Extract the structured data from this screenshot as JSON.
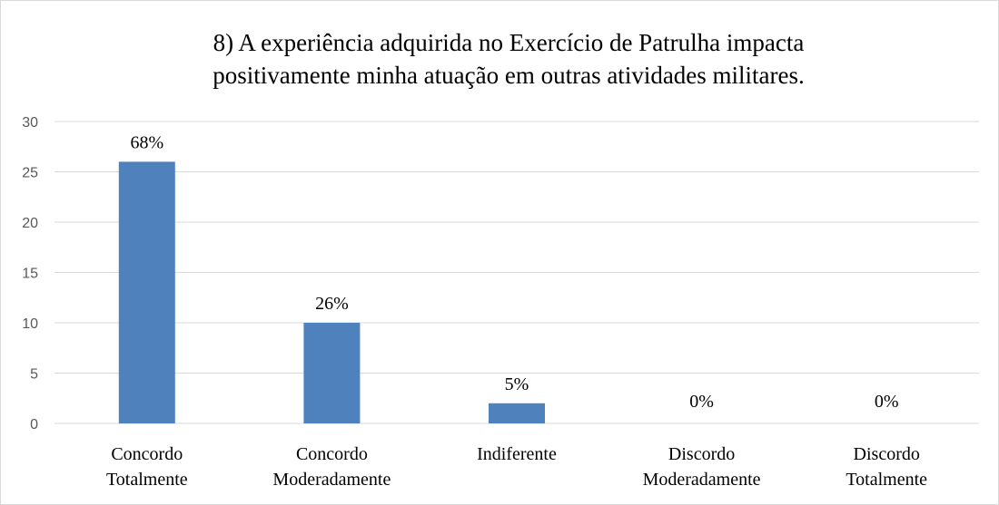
{
  "chart_data": {
    "type": "bar",
    "title": [
      "8) A experiência adquirida no Exercício de Patrulha impacta",
      "positivamente minha atuação em outras atividades militares."
    ],
    "categories": [
      [
        "Concordo",
        "Totalmente"
      ],
      [
        "Concordo",
        "Moderadamente"
      ],
      [
        "Indiferente"
      ],
      [
        "Discordo",
        "Moderadamente"
      ],
      [
        "Discordo",
        "Totalmente"
      ]
    ],
    "values": [
      26,
      10,
      2,
      0,
      0
    ],
    "labels": [
      "68%",
      "26%",
      "5%",
      "0%",
      "0%"
    ],
    "color": "#4f81bd",
    "ylim": [
      0,
      30
    ],
    "yticks": [
      0,
      5,
      10,
      15,
      20,
      25,
      30
    ],
    "grid": true
  }
}
